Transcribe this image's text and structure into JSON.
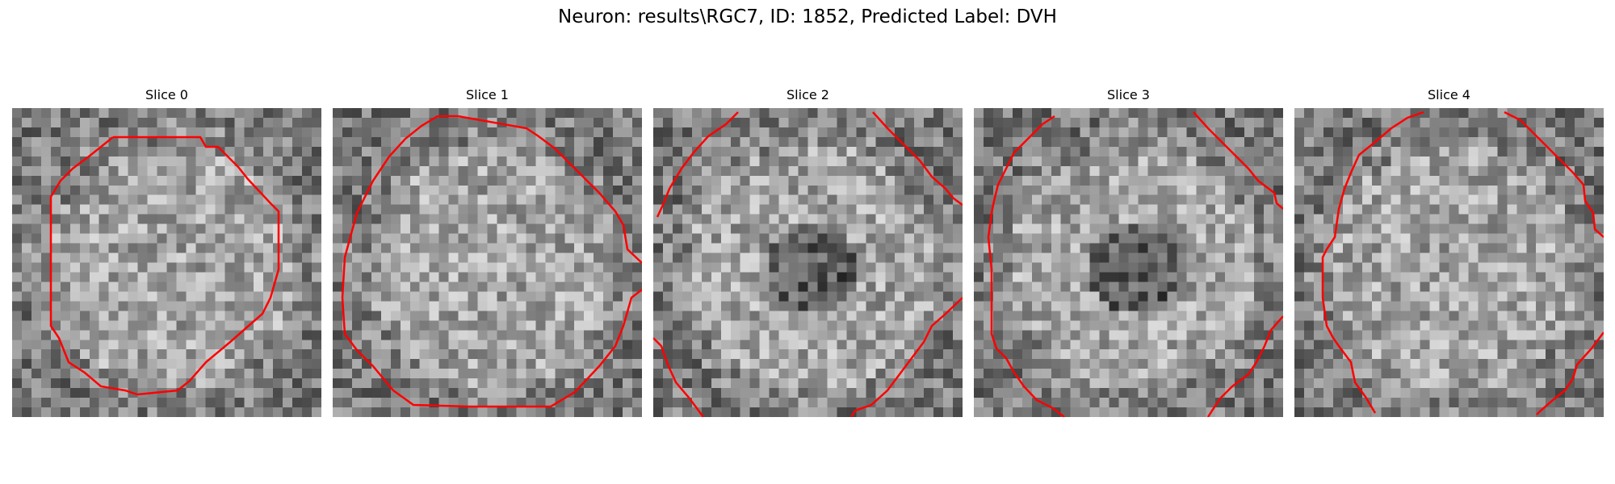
{
  "figure": {
    "title": "Neuron: results\\RGC7, ID: 1852, Predicted Label: DVH",
    "contour_color": "#ff0000",
    "colormap": "gray",
    "grid_size": 32
  },
  "panels": [
    {
      "label": "Slice 0",
      "dark_center": false
    },
    {
      "label": "Slice 1",
      "dark_center": false
    },
    {
      "label": "Slice 2",
      "dark_center": true
    },
    {
      "label": "Slice 3",
      "dark_center": true
    },
    {
      "label": "Slice 4",
      "dark_center": false
    }
  ]
}
